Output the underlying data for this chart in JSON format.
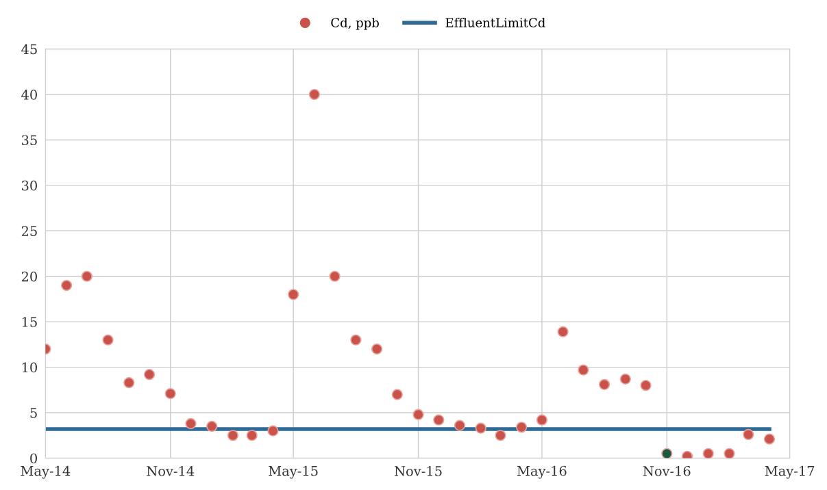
{
  "chart_data": {
    "type": "scatter",
    "x": [
      "2014-05",
      "2014-06",
      "2014-07",
      "2014-08",
      "2014-09",
      "2014-10",
      "2014-11",
      "2014-12",
      "2015-01",
      "2015-02",
      "2015-03",
      "2015-04",
      "2015-05",
      "2015-06",
      "2015-07",
      "2015-08",
      "2015-09",
      "2015-10",
      "2015-11",
      "2015-12",
      "2016-01",
      "2016-02",
      "2016-03",
      "2016-04",
      "2016-05",
      "2016-06",
      "2016-07",
      "2016-08",
      "2016-09",
      "2016-10",
      "2016-11",
      "2016-12",
      "2017-01",
      "2017-02",
      "2017-03",
      "2017-04"
    ],
    "series": [
      {
        "name": "Cd, ppb",
        "color": "#c9534a",
        "marker": "circle",
        "colors": [
          "#c9534a",
          "#c9534a",
          "#c9534a",
          "#c9534a",
          "#c9534a",
          "#c9534a",
          "#c9534a",
          "#c9534a",
          "#c9534a",
          "#c9534a",
          "#c9534a",
          "#c9534a",
          "#c9534a",
          "#c9534a",
          "#c9534a",
          "#c9534a",
          "#c9534a",
          "#c9534a",
          "#c9534a",
          "#c9534a",
          "#c9534a",
          "#c9534a",
          "#c9534a",
          "#c9534a",
          "#c9534a",
          "#c9534a",
          "#c9534a",
          "#c9534a",
          "#c9534a",
          "#c9534a",
          "#1d5a3c",
          "#c9534a",
          "#c9534a",
          "#c9534a",
          "#c9534a",
          "#c9534a"
        ],
        "values": [
          12,
          19,
          20,
          13,
          8.3,
          9.2,
          7.1,
          3.8,
          3.5,
          2.5,
          2.5,
          3.0,
          18,
          40,
          20,
          13,
          12,
          7.0,
          4.8,
          4.2,
          3.6,
          3.3,
          2.5,
          3.4,
          4.2,
          13.9,
          9.7,
          8.1,
          8.7,
          8.0,
          0.5,
          0.2,
          0.5,
          0.5,
          2.6,
          2.1
        ]
      },
      {
        "name": "EffluentLimitCd",
        "type": "line",
        "color": "#2e6a94",
        "marker": "none",
        "line_style": "solid",
        "x": [
          "2014-05",
          "2017-04"
        ],
        "values": [
          3.2,
          3.2
        ]
      }
    ],
    "xlim": [
      "2014-05",
      "2017-05"
    ],
    "xticks": [
      {
        "value": "2014-05",
        "label": "May-14"
      },
      {
        "value": "2014-11",
        "label": "Nov-14"
      },
      {
        "value": "2015-05",
        "label": "May-15"
      },
      {
        "value": "2015-11",
        "label": "Nov-15"
      },
      {
        "value": "2016-05",
        "label": "May-16"
      },
      {
        "value": "2016-11",
        "label": "Nov-16"
      },
      {
        "value": "2017-05",
        "label": "May-17"
      }
    ],
    "ylim": [
      0,
      45
    ],
    "yticks": [
      0,
      5,
      10,
      15,
      20,
      25,
      30,
      35,
      40,
      45
    ],
    "grid": true,
    "legend": "top"
  }
}
